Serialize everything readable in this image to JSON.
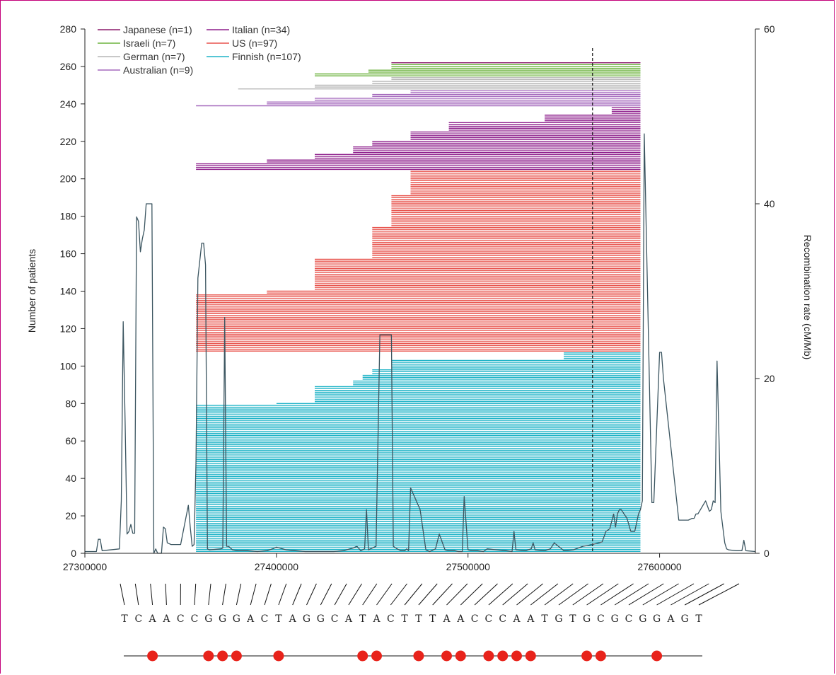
{
  "chart_data": {
    "type": "line",
    "x_range": [
      27300000,
      27650000
    ],
    "ylim_left": [
      0,
      280
    ],
    "ylim_right": [
      0,
      60
    ],
    "ylabel_left": "Number of patients",
    "ylabel_right": "Recombination rate (cM/Mb)",
    "x_ticks": [
      27300000,
      27400000,
      27500000,
      27600000
    ],
    "x_tick_labels": [
      "27300000",
      "27400000",
      "27500000",
      "27600000"
    ],
    "y_ticks_left": [
      0,
      20,
      40,
      60,
      80,
      100,
      120,
      140,
      160,
      180,
      200,
      220,
      240,
      260,
      280
    ],
    "y_ticks_right": [
      0,
      20,
      40,
      60
    ],
    "legend_placement": "top-left",
    "legend": [
      {
        "label": "Japanese (n=1)",
        "color": "#8b1a6b"
      },
      {
        "label": "Israeli (n=7)",
        "color": "#6db33f"
      },
      {
        "label": "German (n=7)",
        "color": "#b5b5b5"
      },
      {
        "label": "Australian (n=9)",
        "color": "#a569bd"
      },
      {
        "label": "Italian (n=34)",
        "color": "#8e1f8c"
      },
      {
        "label": "US (n=97)",
        "color": "#e8544e"
      },
      {
        "label": "Finnish (n=107)",
        "color": "#1fb3c7"
      }
    ],
    "haplotype_groups": [
      {
        "population": "Finnish",
        "count": 107,
        "start_index": 1,
        "color": "#1fb3c7",
        "end": 27590000,
        "starts": [
          [
            79,
            27358000
          ],
          [
            80,
            27400000
          ],
          [
            89,
            27420000
          ],
          [
            92,
            27440000
          ],
          [
            95,
            27445000
          ],
          [
            98,
            27450000
          ],
          [
            103,
            27460000
          ],
          [
            106,
            27550000
          ]
        ]
      },
      {
        "population": "US",
        "count": 97,
        "start_index": 108,
        "color": "#e8544e",
        "end": 27590000,
        "starts": [
          [
            31,
            27358000
          ],
          [
            33,
            27395000
          ],
          [
            50,
            27420000
          ],
          [
            67,
            27450000
          ],
          [
            84,
            27460000
          ],
          [
            97,
            27470000
          ]
        ]
      },
      {
        "population": "Italian",
        "count": 34,
        "start_index": 205,
        "color": "#8e1f8c",
        "end": 27590000,
        "starts": [
          [
            4,
            27358000
          ],
          [
            6,
            27395000
          ],
          [
            9,
            27420000
          ],
          [
            13,
            27440000
          ],
          [
            16,
            27450000
          ],
          [
            21,
            27470000
          ],
          [
            26,
            27490000
          ],
          [
            30,
            27540000
          ],
          [
            34,
            27575000
          ]
        ]
      },
      {
        "population": "Australian",
        "count": 9,
        "start_index": 239,
        "color": "#a569bd",
        "end": 27590000,
        "starts": [
          [
            1,
            27358000
          ],
          [
            3,
            27395000
          ],
          [
            5,
            27420000
          ],
          [
            7,
            27450000
          ],
          [
            9,
            27470000
          ]
        ]
      },
      {
        "population": "German",
        "count": 7,
        "start_index": 248,
        "color": "#b5b5b5",
        "end": 27590000,
        "starts": [
          [
            1,
            27380000
          ],
          [
            3,
            27420000
          ],
          [
            5,
            27450000
          ],
          [
            7,
            27460000
          ]
        ]
      },
      {
        "population": "Israeli",
        "count": 7,
        "start_index": 255,
        "color": "#6db33f",
        "end": 27590000,
        "starts": [
          [
            2,
            27420000
          ],
          [
            4,
            27448000
          ],
          [
            7,
            27460000
          ]
        ]
      },
      {
        "population": "Japanese",
        "count": 1,
        "start_index": 262,
        "color": "#8b1a6b",
        "end": 27590000,
        "starts": [
          [
            1,
            27460000
          ]
        ]
      }
    ],
    "marker_line_x": 27565000,
    "recombination_series": {
      "name": "",
      "color": "#3b5560",
      "x": [
        27300000,
        27306000,
        27307000,
        27308000,
        27309000,
        27318000,
        27319000,
        27320000,
        27321000,
        27322000,
        27323000,
        27324000,
        27325000,
        27326000,
        27327000,
        27328000,
        27329000,
        27330000,
        27331000,
        27332000,
        27333000,
        27334000,
        27335000,
        27336000,
        27337000,
        27338000,
        27340000,
        27341000,
        27342000,
        27343000,
        27345000,
        27350000,
        27354000,
        27355000,
        27356000,
        27357000,
        27358000,
        27359000,
        27361000,
        27362000,
        27363000,
        27364000,
        27365000,
        27371000,
        27372000,
        27373000,
        27374000,
        27375000,
        27377000,
        27380000,
        27385000,
        27390000,
        27395000,
        27398000,
        27400000,
        27405000,
        27410000,
        27415000,
        27420000,
        27425000,
        27430000,
        27435000,
        27440000,
        27442000,
        27444000,
        27446000,
        27447000,
        27448000,
        27450000,
        27452000,
        27454000,
        27456000,
        27458000,
        27460000,
        27461000,
        27463000,
        27465000,
        27467000,
        27468000,
        27469000,
        27470000,
        27472000,
        27475000,
        27478000,
        27480000,
        27483000,
        27485000,
        27488000,
        27490000,
        27493000,
        27495000,
        27497000,
        27498000,
        27500000,
        27502000,
        27505000,
        27508000,
        27510000,
        27515000,
        27520000,
        27523000,
        27524000,
        27525000,
        27530000,
        27533000,
        27534000,
        27535000,
        27540000,
        27543000,
        27545000,
        27550000,
        27555000,
        27560000,
        27565000,
        27570000,
        27572000,
        27574000,
        27576000,
        27577000,
        27578000,
        27579000,
        27580000,
        27583000,
        27585000,
        27587000,
        27588000,
        27589000,
        27590000,
        27591000,
        27592000,
        27596000,
        27597000,
        27600000,
        27601000,
        27602000,
        27610000,
        27615000,
        27617000,
        27618000,
        27619000,
        27620000,
        27624000,
        27626000,
        27627000,
        27628000,
        27629000,
        27630000,
        27632000,
        27634000,
        27635000,
        27636000,
        27640000,
        27643000,
        27644000,
        27645000,
        27650000
      ],
      "y": [
        0.2,
        0.2,
        1.6,
        1.6,
        0.3,
        0.5,
        6,
        26.5,
        15,
        2.2,
        2.5,
        3.3,
        2.3,
        2.3,
        38.5,
        38,
        34.5,
        36,
        37,
        40,
        40,
        40,
        40,
        0,
        0.5,
        0,
        0,
        3,
        2.8,
        1.2,
        1,
        1,
        5.5,
        3,
        0.8,
        1,
        10.5,
        31.5,
        35.5,
        35.5,
        33,
        0.5,
        0.4,
        0.5,
        0.6,
        27,
        0.8,
        0.8,
        0.4,
        0.3,
        0.3,
        0.2,
        0.3,
        0.5,
        0.7,
        0.4,
        0.3,
        0.2,
        0.2,
        0.2,
        0.2,
        0.3,
        0.6,
        0.8,
        0.3,
        0.5,
        5,
        0.4,
        0.6,
        0.8,
        25,
        25,
        25,
        25,
        0.8,
        0.5,
        0.3,
        0.3,
        0.5,
        0.3,
        7.5,
        6.5,
        5,
        0.4,
        0.2,
        0.5,
        2.2,
        0.4,
        0.3,
        0.3,
        0.2,
        0.2,
        6.5,
        0.4,
        0.3,
        0.3,
        0.2,
        0.5,
        0.4,
        0.3,
        0.2,
        2.5,
        0.4,
        0.3,
        0.5,
        1.2,
        0.4,
        0.3,
        0.5,
        1.2,
        0.3,
        0.4,
        0.8,
        1,
        1.3,
        2.5,
        2.8,
        4.5,
        3,
        4.5,
        5,
        5,
        4,
        2.5,
        2.5,
        3.5,
        4.5,
        5,
        6,
        48,
        5.8,
        5.8,
        23,
        23,
        20,
        3.8,
        3.8,
        4,
        4,
        4.5,
        4.5,
        6,
        4.8,
        5,
        6,
        5.8,
        22,
        4.8,
        1.2,
        0.5,
        0.4,
        0.3,
        0.3,
        1.5,
        0.3,
        0.2
      ]
    },
    "snp_sequence": [
      "T",
      "C",
      "A",
      "A",
      "C",
      "C",
      "G",
      "G",
      "G",
      "A",
      "C",
      "T",
      "A",
      "G",
      "G",
      "C",
      "A",
      "T",
      "A",
      "C",
      "T",
      "T",
      "T",
      "A",
      "A",
      "C",
      "C",
      "C",
      "A",
      "A",
      "T",
      "G",
      "T",
      "G",
      "C",
      "G",
      "C",
      "G",
      "G",
      "A",
      "G",
      "T"
    ],
    "snp_marked_indices": [
      2,
      6,
      7,
      8,
      11,
      17,
      18,
      21,
      23,
      24,
      26,
      27,
      28,
      29,
      33,
      34,
      38
    ],
    "snp_marker_color": "#e8231b"
  }
}
